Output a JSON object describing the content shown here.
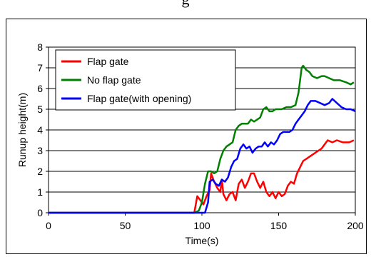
{
  "header": {
    "title_fragment": "g"
  },
  "chart_data": {
    "type": "line",
    "title": "",
    "xlabel": "Time(s)",
    "ylabel": "Runup height(m)",
    "xlim": [
      0,
      200
    ],
    "ylim": [
      0,
      8
    ],
    "xticks": [
      "0",
      "50",
      "100",
      "150",
      "200"
    ],
    "yticks": [
      "0",
      "1",
      "2",
      "3",
      "4",
      "5",
      "6",
      "7",
      "8"
    ],
    "grid": "horizontal",
    "legend_position": "top-left",
    "series": [
      {
        "name": "Flap gate",
        "color": "#ff0000",
        "points": [
          [
            0,
            0
          ],
          [
            95,
            0
          ],
          [
            97,
            0.8
          ],
          [
            99,
            0.6
          ],
          [
            101,
            0.4
          ],
          [
            103,
            0.8
          ],
          [
            105,
            1.1
          ],
          [
            106,
            1.9
          ],
          [
            108,
            1.5
          ],
          [
            110,
            1.2
          ],
          [
            112,
            1.0
          ],
          [
            113,
            1.6
          ],
          [
            114,
            0.9
          ],
          [
            116,
            0.6
          ],
          [
            118,
            0.9
          ],
          [
            120,
            1.0
          ],
          [
            122,
            0.6
          ],
          [
            124,
            1.4
          ],
          [
            126,
            1.6
          ],
          [
            128,
            1.2
          ],
          [
            130,
            1.5
          ],
          [
            132,
            1.9
          ],
          [
            134,
            1.9
          ],
          [
            136,
            1.5
          ],
          [
            138,
            1.2
          ],
          [
            140,
            1.5
          ],
          [
            142,
            1.0
          ],
          [
            144,
            0.8
          ],
          [
            146,
            1.0
          ],
          [
            148,
            0.7
          ],
          [
            150,
            1.0
          ],
          [
            152,
            0.8
          ],
          [
            154,
            0.9
          ],
          [
            156,
            1.3
          ],
          [
            158,
            1.5
          ],
          [
            160,
            1.4
          ],
          [
            162,
            1.9
          ],
          [
            164,
            2.2
          ],
          [
            166,
            2.5
          ],
          [
            168,
            2.6
          ],
          [
            170,
            2.7
          ],
          [
            172,
            2.8
          ],
          [
            174,
            2.9
          ],
          [
            176,
            3.0
          ],
          [
            178,
            3.1
          ],
          [
            180,
            3.3
          ],
          [
            182,
            3.5
          ],
          [
            185,
            3.4
          ],
          [
            188,
            3.5
          ],
          [
            192,
            3.4
          ],
          [
            196,
            3.4
          ],
          [
            199,
            3.5
          ]
        ]
      },
      {
        "name": "No flap gate",
        "color": "#008000",
        "points": [
          [
            0,
            0
          ],
          [
            95,
            0
          ],
          [
            98,
            0.1
          ],
          [
            100,
            0.5
          ],
          [
            102,
            1.4
          ],
          [
            104,
            2.0
          ],
          [
            106,
            2.0
          ],
          [
            108,
            1.9
          ],
          [
            110,
            2.0
          ],
          [
            112,
            2.6
          ],
          [
            114,
            3.0
          ],
          [
            116,
            3.2
          ],
          [
            118,
            3.3
          ],
          [
            120,
            3.4
          ],
          [
            122,
            4.0
          ],
          [
            124,
            4.2
          ],
          [
            126,
            4.3
          ],
          [
            128,
            4.3
          ],
          [
            130,
            4.3
          ],
          [
            132,
            4.5
          ],
          [
            134,
            4.4
          ],
          [
            136,
            4.5
          ],
          [
            138,
            4.6
          ],
          [
            140,
            5.0
          ],
          [
            142,
            5.1
          ],
          [
            144,
            4.9
          ],
          [
            146,
            4.9
          ],
          [
            148,
            5.0
          ],
          [
            150,
            5.0
          ],
          [
            152,
            5.0
          ],
          [
            155,
            5.1
          ],
          [
            158,
            5.1
          ],
          [
            161,
            5.2
          ],
          [
            163,
            5.8
          ],
          [
            165,
            7.0
          ],
          [
            166,
            7.1
          ],
          [
            168,
            6.9
          ],
          [
            170,
            6.8
          ],
          [
            172,
            6.6
          ],
          [
            175,
            6.5
          ],
          [
            178,
            6.6
          ],
          [
            180,
            6.6
          ],
          [
            183,
            6.5
          ],
          [
            186,
            6.4
          ],
          [
            190,
            6.4
          ],
          [
            194,
            6.3
          ],
          [
            197,
            6.2
          ],
          [
            199,
            6.3
          ]
        ]
      },
      {
        "name": "Flap gate(with opening)",
        "color": "#0000ff",
        "points": [
          [
            0,
            0
          ],
          [
            102,
            0
          ],
          [
            104,
            0.5
          ],
          [
            105,
            1.5
          ],
          [
            107,
            1.6
          ],
          [
            109,
            1.4
          ],
          [
            111,
            1.3
          ],
          [
            113,
            1.6
          ],
          [
            115,
            1.5
          ],
          [
            117,
            1.7
          ],
          [
            119,
            2.2
          ],
          [
            121,
            2.5
          ],
          [
            123,
            2.6
          ],
          [
            125,
            3.1
          ],
          [
            127,
            3.3
          ],
          [
            129,
            3.1
          ],
          [
            131,
            3.2
          ],
          [
            133,
            2.9
          ],
          [
            135,
            3.1
          ],
          [
            137,
            3.2
          ],
          [
            139,
            3.2
          ],
          [
            141,
            3.4
          ],
          [
            143,
            3.2
          ],
          [
            145,
            3.4
          ],
          [
            147,
            3.3
          ],
          [
            149,
            3.5
          ],
          [
            151,
            3.8
          ],
          [
            153,
            3.9
          ],
          [
            155,
            3.9
          ],
          [
            157,
            3.9
          ],
          [
            159,
            4.0
          ],
          [
            161,
            4.3
          ],
          [
            163,
            4.5
          ],
          [
            165,
            4.7
          ],
          [
            167,
            4.9
          ],
          [
            169,
            5.2
          ],
          [
            171,
            5.4
          ],
          [
            174,
            5.4
          ],
          [
            177,
            5.3
          ],
          [
            180,
            5.2
          ],
          [
            183,
            5.3
          ],
          [
            185,
            5.5
          ],
          [
            188,
            5.3
          ],
          [
            191,
            5.1
          ],
          [
            194,
            5.0
          ],
          [
            197,
            5.0
          ],
          [
            200,
            4.9
          ]
        ]
      }
    ]
  }
}
